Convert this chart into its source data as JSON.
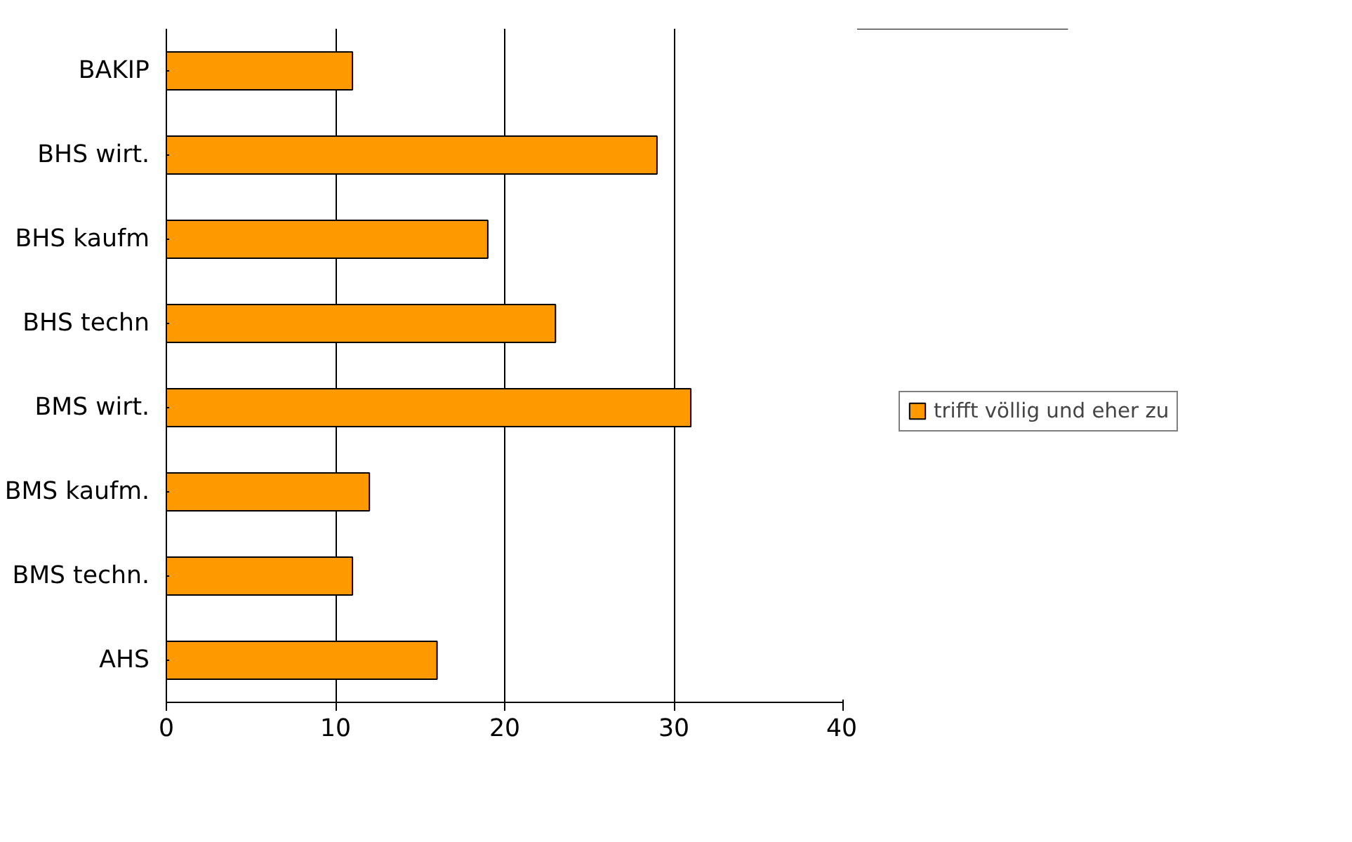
{
  "chart_data": {
    "type": "bar",
    "orientation": "horizontal",
    "categories": [
      "BAKIP",
      "BHS wirt.",
      "BHS kaufm",
      "BHS techn",
      "BMS wirt.",
      "BMS kaufm.",
      "BMS techn.",
      "AHS"
    ],
    "series": [
      {
        "name": "trifft völlig und eher zu",
        "color": "#ff9900",
        "values": [
          11,
          29,
          19,
          23,
          31,
          12,
          11,
          16
        ]
      }
    ],
    "xlim": [
      0,
      40
    ],
    "xticks": [
      0,
      10,
      20,
      30,
      40
    ],
    "grid": "x",
    "legend": "right"
  }
}
